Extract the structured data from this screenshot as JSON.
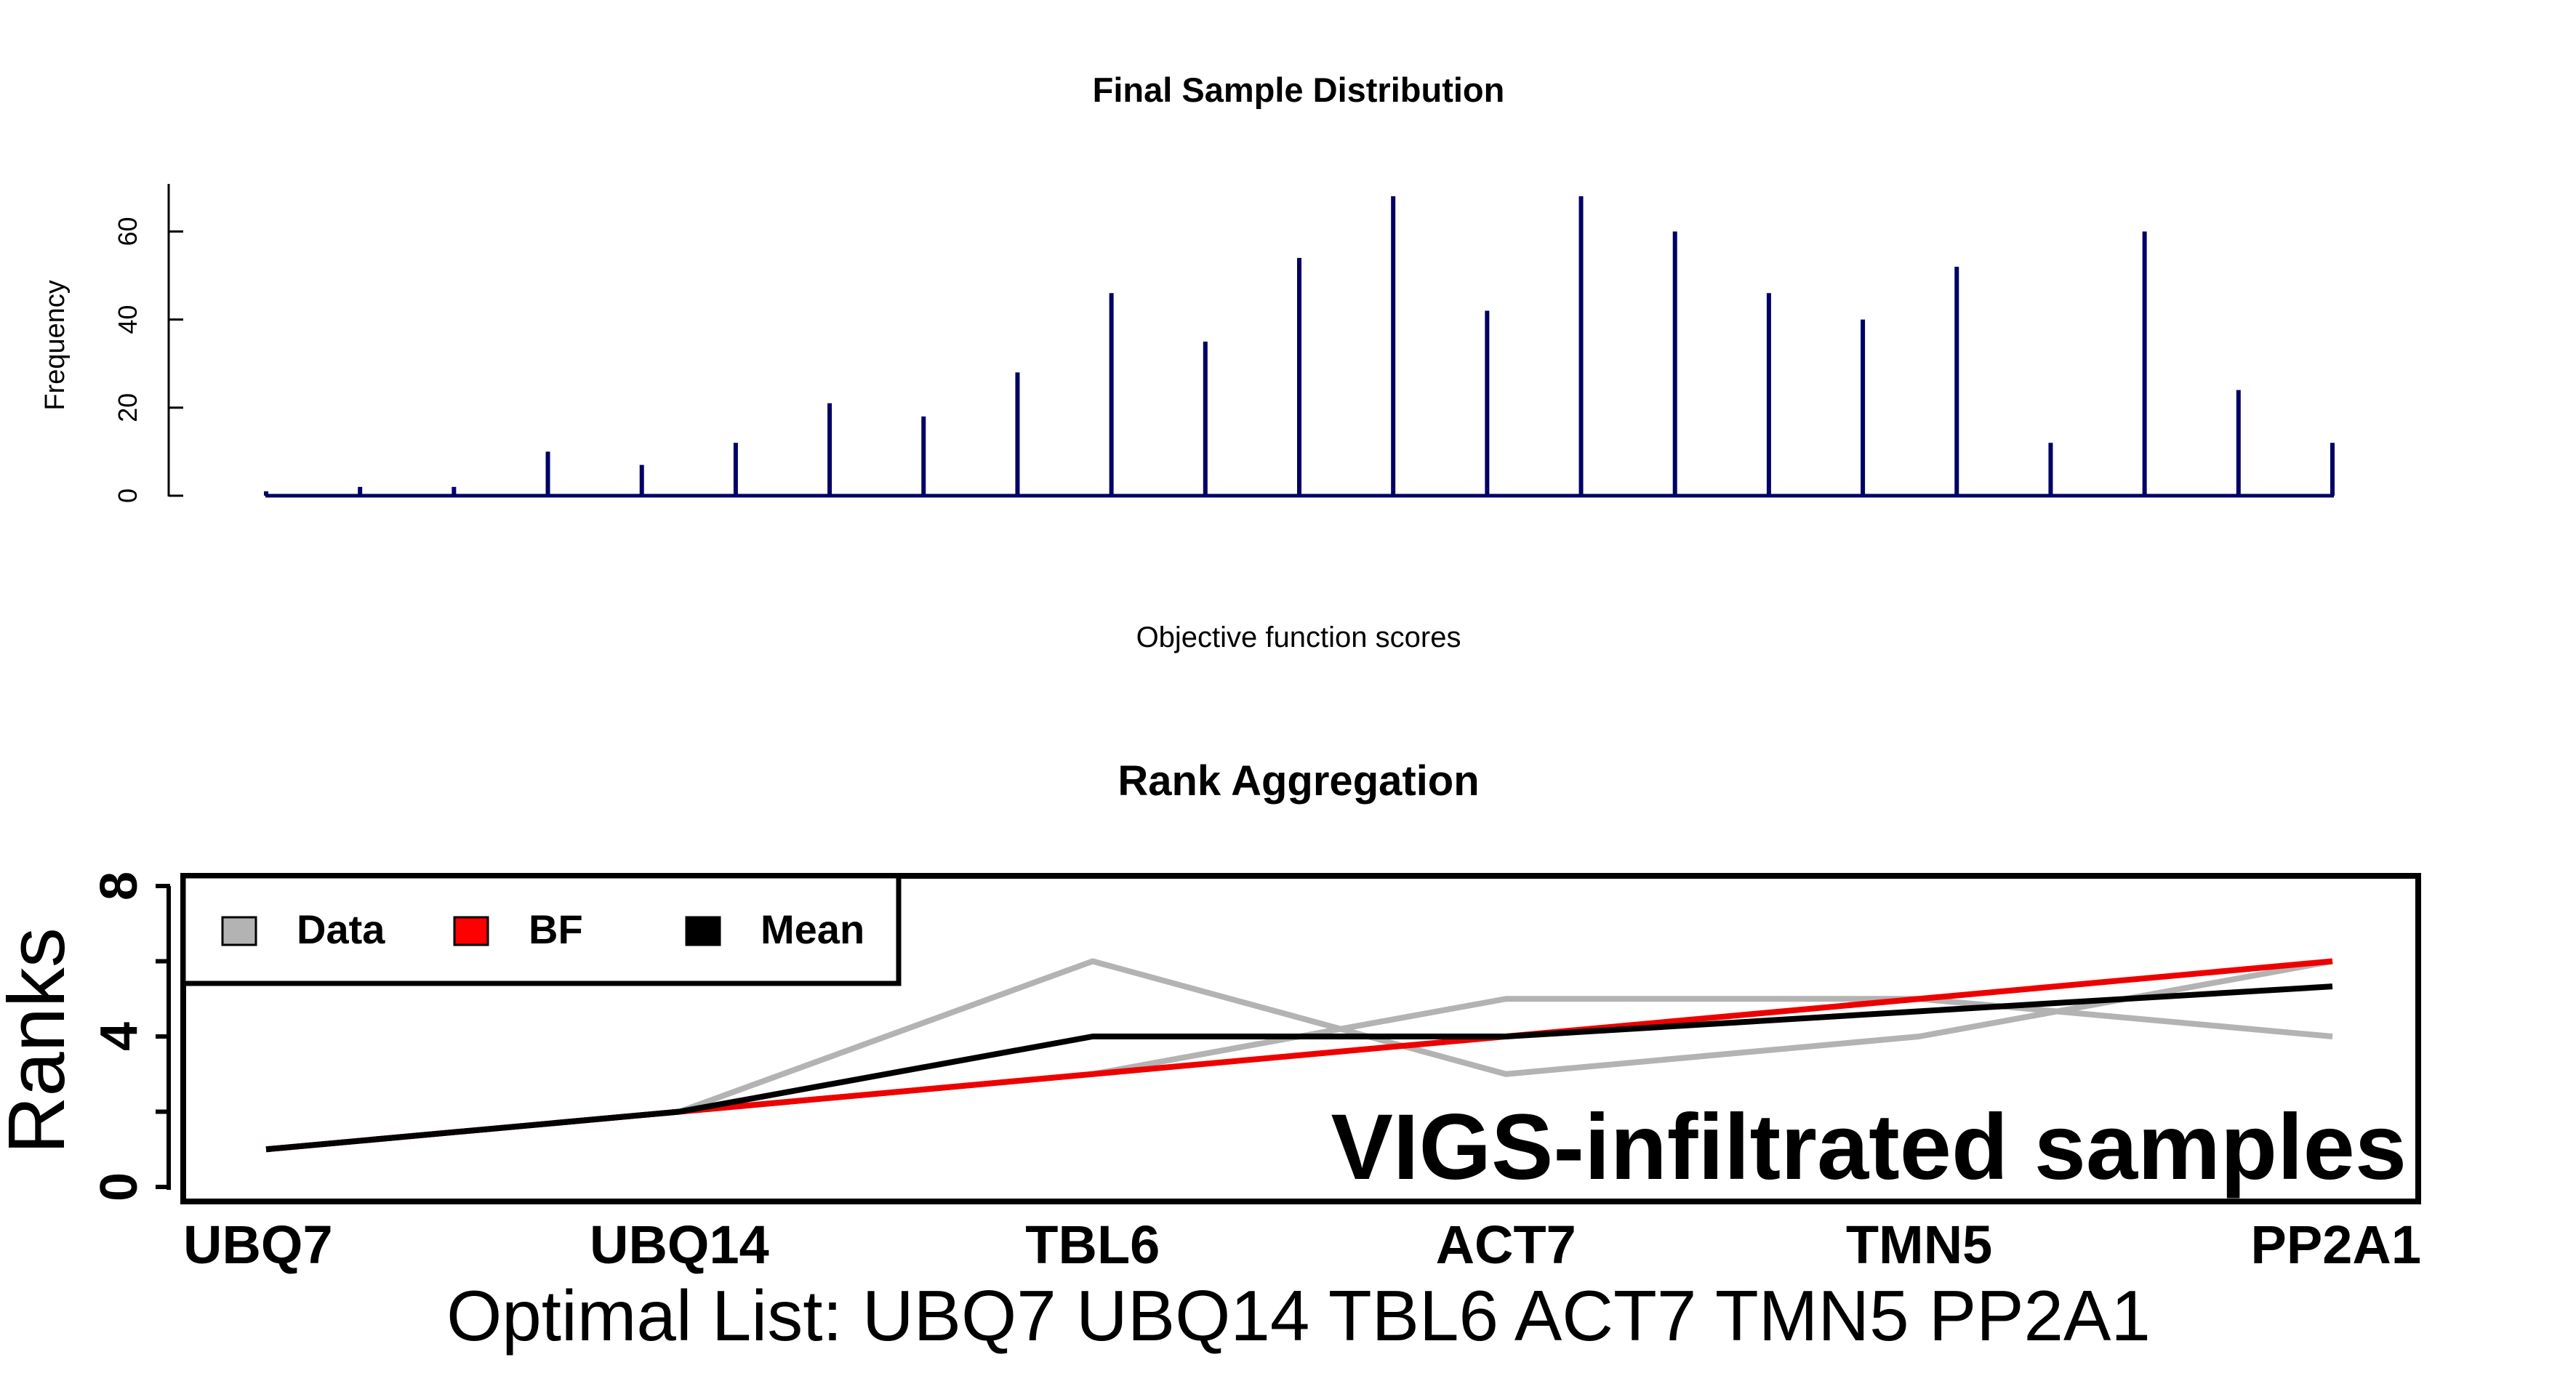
{
  "chart_data": [
    {
      "type": "bar",
      "title": "Final Sample Distribution",
      "xlabel": "Objective function scores",
      "ylabel": "Frequency",
      "ylim": [
        0,
        70
      ],
      "y_ticks": [
        "0",
        "20",
        "40",
        "60"
      ],
      "bar_color": "#000066",
      "values": [
        1,
        2,
        2,
        10,
        7,
        12,
        21,
        18,
        28,
        46,
        35,
        54,
        68,
        42,
        68,
        60,
        46,
        40,
        52,
        12,
        60,
        24,
        12
      ]
    },
    {
      "type": "line",
      "title": "Rank Aggregation",
      "ylabel": "Ranks",
      "categories": [
        "UBQ7",
        "UBQ14",
        "TBL6",
        "ACT7",
        "TMN5",
        "PP2A1"
      ],
      "y_ticks": [
        "0",
        "4",
        "8"
      ],
      "ylim": [
        0,
        8
      ],
      "legend": {
        "position": "top-left",
        "items": [
          {
            "label": "Data",
            "color": "#b3b3b3"
          },
          {
            "label": "BF",
            "color": "#ff0000"
          },
          {
            "label": "Mean",
            "color": "#000000"
          }
        ]
      },
      "annotation": "VIGS-infiltrated samples",
      "footer": "Optimal List: UBQ7 UBQ14 TBL6 ACT7 TMN5 PP2A1",
      "data_series": [
        [
          1,
          2,
          6,
          3,
          4,
          6
        ],
        [
          1,
          2,
          3,
          5,
          5,
          4
        ]
      ],
      "series": [
        {
          "name": "BF",
          "color": "#ee0000",
          "values": [
            1,
            2,
            3,
            4,
            5,
            6
          ]
        },
        {
          "name": "Mean",
          "color": "#000000",
          "values": [
            1,
            2,
            4,
            4,
            4.67,
            5.33
          ]
        }
      ]
    }
  ]
}
